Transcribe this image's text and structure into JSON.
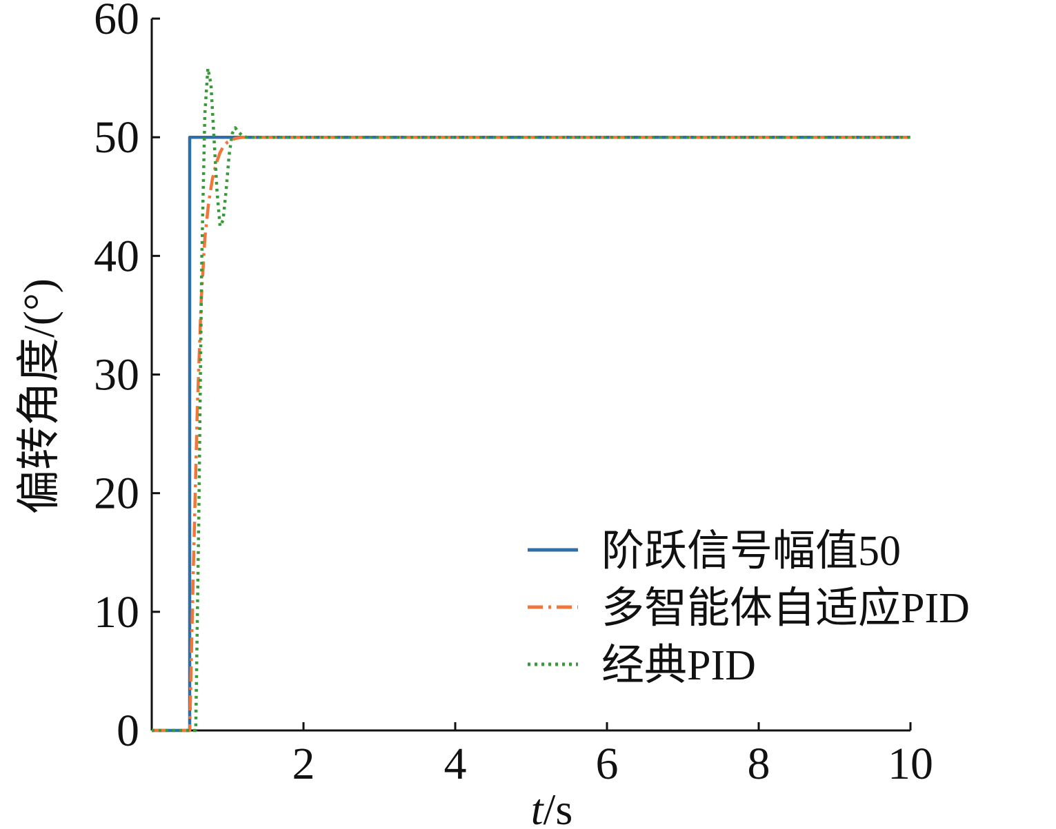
{
  "chart_data": {
    "type": "line",
    "title": "",
    "xlabel_italic": "t",
    "xlabel_unit": "/s",
    "ylabel": "偏转角度/(°)",
    "xlim": [
      0,
      10
    ],
    "ylim": [
      0,
      60
    ],
    "x_ticks": [
      2,
      4,
      6,
      8,
      10
    ],
    "y_ticks": [
      0,
      10,
      20,
      30,
      40,
      50,
      60
    ],
    "grid": false,
    "legend_position": "lower-right",
    "series": [
      {
        "name": "阶跃信号幅值50",
        "color": "#2f6fa7",
        "style": "solid",
        "x": [
          0,
          0.5,
          0.5,
          10
        ],
        "y": [
          0,
          0,
          50,
          50
        ]
      },
      {
        "name": "多智能体自适应PID",
        "color": "#f0763a",
        "style": "dashdot",
        "x": [
          0,
          0.5,
          0.55,
          0.6,
          0.65,
          0.7,
          0.75,
          0.8,
          0.85,
          0.9,
          0.95,
          1.0,
          1.1,
          1.2,
          1.4,
          10
        ],
        "y": [
          0,
          0,
          14,
          27,
          36,
          41.5,
          44.5,
          46.5,
          47.8,
          48.7,
          49.3,
          49.6,
          49.9,
          50,
          50,
          50
        ]
      },
      {
        "name": "经典PID",
        "color": "#3a9a3a",
        "style": "dotted",
        "x": [
          0,
          0.58,
          0.62,
          0.66,
          0.7,
          0.74,
          0.78,
          0.82,
          0.86,
          0.9,
          0.94,
          0.98,
          1.02,
          1.06,
          1.1,
          1.15,
          1.2,
          1.25,
          1.3,
          1.4,
          10
        ],
        "y": [
          0,
          0,
          18,
          40,
          52,
          55.8,
          54.5,
          50,
          45.5,
          42.5,
          43,
          45.5,
          48.5,
          50.3,
          50.8,
          50.4,
          50.1,
          50,
          50,
          50,
          50
        ]
      }
    ]
  }
}
